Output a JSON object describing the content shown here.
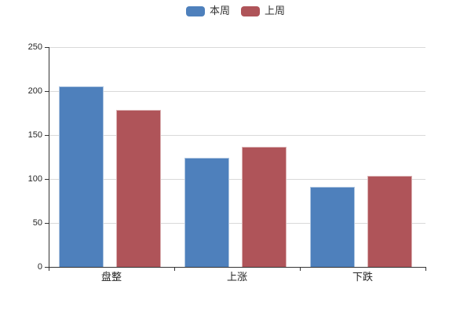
{
  "chart_data": {
    "type": "bar",
    "title": "",
    "categories": [
      "盘整",
      "上涨",
      "下跌"
    ],
    "series": [
      {
        "name": "本周",
        "color": "#4e80bc",
        "values": [
          205,
          124,
          91
        ]
      },
      {
        "name": "上周",
        "color": "#af5459",
        "values": [
          179,
          137,
          104
        ]
      }
    ],
    "ylim": [
      0,
      250
    ],
    "ytick_step": 50,
    "ytick_labels": [
      "0",
      "50",
      "100",
      "150",
      "200",
      "250"
    ],
    "grid": true,
    "legend_position": "top"
  },
  "colors": {
    "background": "#ffffff",
    "axis": "#333333",
    "gridline": "#d9d9d9",
    "text": "#262626",
    "series_this_week": "#4e80bc",
    "series_last_week": "#af5459"
  }
}
